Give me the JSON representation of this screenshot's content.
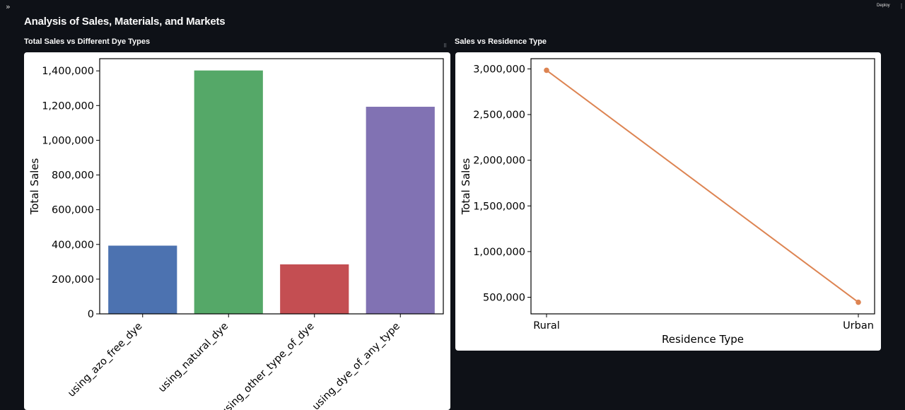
{
  "header": {
    "expand_icon": "»",
    "deploy_label": "Deploy",
    "menu_icon": "⋮"
  },
  "page_title": "Analysis of Sales, Materials, and Markets",
  "sections": {
    "left_title": "Total Sales vs Different Dye Types",
    "right_title": "Sales vs Residence Type"
  },
  "drag_icon": "⠿",
  "chart_data": [
    {
      "type": "bar",
      "title": "",
      "xlabel": "",
      "ylabel": "Total Sales",
      "categories": [
        "using_azo_free_dye",
        "using_natural_dye",
        "using_other_type_of_dye",
        "using_dye_of_any_type"
      ],
      "values": [
        393000,
        1402000,
        285000,
        1193000
      ],
      "colors": [
        "#4c72b0",
        "#55a868",
        "#c44e52",
        "#8172b3"
      ],
      "ylim": [
        0,
        1470000
      ],
      "yticks": [
        0,
        200000,
        400000,
        600000,
        800000,
        1000000,
        1200000,
        1400000
      ],
      "ytick_labels": [
        "0",
        "200,000",
        "400,000",
        "600,000",
        "800,000",
        "1,000,000",
        "1,200,000",
        "1,400,000"
      ],
      "grid": false
    },
    {
      "type": "line",
      "title": "",
      "xlabel": "Residence Type",
      "ylabel": "Total Sales",
      "categories": [
        "Rural",
        "Urban"
      ],
      "values": [
        2985000,
        445000
      ],
      "color": "#dd8452",
      "ylim": [
        318000,
        3112000
      ],
      "yticks": [
        500000,
        1000000,
        1500000,
        2000000,
        2500000,
        3000000
      ],
      "ytick_labels": [
        "500,000",
        "1,000,000",
        "1,500,000",
        "2,000,000",
        "2,500,000",
        "3,000,000"
      ],
      "grid": false
    }
  ]
}
